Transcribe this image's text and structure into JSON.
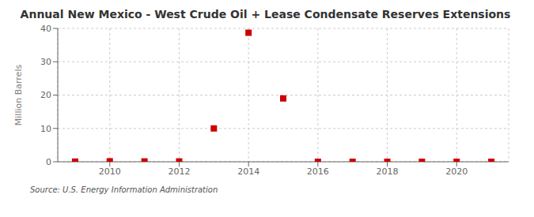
{
  "chart_data": {
    "type": "scatter",
    "title": "Annual New Mexico - West Crude Oil + Lease Condensate Reserves Extensions",
    "y_label": "Million Barrels",
    "annotation": "Source: U.S. Energy Information Administration",
    "x": [
      2009,
      2010,
      2011,
      2012,
      2013,
      2014,
      2015,
      2016,
      2017,
      2018,
      2019,
      2020,
      2021
    ],
    "values": [
      0.05,
      0.15,
      0.1,
      0.1,
      10.0,
      38.7,
      19.0,
      0.0,
      0.0,
      0.0,
      0.0,
      0.0,
      0.0
    ],
    "color": "#cc0000",
    "marker": "square",
    "xlim": [
      2008.5,
      2021.5
    ],
    "ylim": [
      0,
      40
    ],
    "xticks": [
      2010,
      2012,
      2014,
      2016,
      2018,
      2020
    ],
    "yticks": [
      0,
      10,
      20,
      30,
      40
    ],
    "grid": true
  }
}
